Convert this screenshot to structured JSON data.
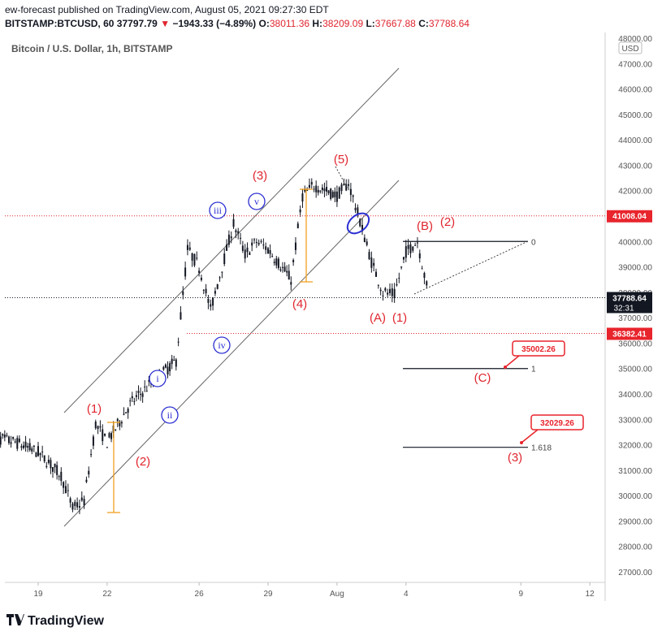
{
  "header": {
    "publisher_line": "ew-forecast published on TradingView.com, August 05, 2021 09:27:30 EDT",
    "symbol": "BITSTAMP:BTCUSD, 60",
    "last": "37797.79",
    "change": "−1943.33 (−4.89%)",
    "o_label": "O:",
    "o": "38011.36",
    "h_label": "H:",
    "h": "38209.09",
    "l_label": "L:",
    "l": "37667.88",
    "c_label": "C:",
    "c": "37788.64"
  },
  "footer": {
    "brand": "TradingView"
  },
  "colors": {
    "wave_red": "#e0262f",
    "wave_blue": "#2a2ed1",
    "fib_orange": "#f0a020",
    "candle": "#131722",
    "axis_text": "#555555"
  },
  "chart_data": {
    "type": "line",
    "title": "Bitcoin / U.S. Dollar, 1h, BITSTAMP",
    "currency": "USD",
    "x_ticks": [
      "19",
      "22",
      "26",
      "29",
      "Aug",
      "4",
      "9",
      "12"
    ],
    "y_ticks": [
      "48000.00",
      "47000.00",
      "46000.00",
      "45000.00",
      "44000.00",
      "43000.00",
      "42000.00",
      "41000.00",
      "40000.00",
      "39000.00",
      "38000.00",
      "37000.00",
      "36000.00",
      "35000.00",
      "34000.00",
      "33000.00",
      "32000.00",
      "31000.00",
      "30000.00",
      "29000.00",
      "28000.00",
      "27000.00"
    ],
    "ylim": [
      26500,
      48200
    ],
    "series": [
      {
        "x": [
          "Jul 17",
          "Jul 18",
          "Jul 19",
          "Jul 20",
          "Jul 20.5",
          "Jul 21",
          "Jul 21.5",
          "Jul 22",
          "Jul 23",
          "Jul 24",
          "Jul 25",
          "Jul 25.5",
          "Jul 26",
          "Jul 26.5",
          "Jul 27",
          "Jul 27.5",
          "Jul 28",
          "Jul 28.5",
          "Jul 29",
          "Jul 30",
          "Jul 30.5",
          "Jul 31",
          "Aug 1",
          "Aug 1.5",
          "Aug 2",
          "Aug 2.5",
          "Aug 3",
          "Aug 3.5",
          "Aug 4",
          "Aug 4.5",
          "Aug 5"
        ],
        "values": [
          32300,
          32100,
          31700,
          30800,
          29500,
          29800,
          32800,
          32100,
          33600,
          34500,
          35300,
          39700,
          39000,
          37300,
          39000,
          40700,
          39500,
          40000,
          39700,
          38500,
          41800,
          42200,
          41800,
          42300,
          40800,
          39200,
          38000,
          37900,
          39600,
          40000,
          37800
        ]
      }
    ],
    "price_tags": [
      {
        "label": "41008.04",
        "value": 41008.04,
        "style": "red"
      },
      {
        "label": "37788.64",
        "value": 37788.64,
        "style": "dark",
        "sub": "32:31"
      },
      {
        "label": "36382.41",
        "value": 36382.41,
        "style": "red"
      }
    ],
    "fib_levels": [
      {
        "label": "0",
        "value": 40000
      },
      {
        "label": "1",
        "value": 35000
      },
      {
        "label": "1.618",
        "value": 31900
      }
    ],
    "target_boxes": [
      "35002.26",
      "32029.26"
    ],
    "wave_labels_red": [
      "(1)",
      "(2)",
      "(3)",
      "(4)",
      "(5)",
      "(A)",
      "(1)",
      "(B)",
      "(2)",
      "(C)",
      "(3)"
    ],
    "wave_labels_blue": [
      "i",
      "ii",
      "iii",
      "iv",
      "v"
    ],
    "grid": false
  }
}
